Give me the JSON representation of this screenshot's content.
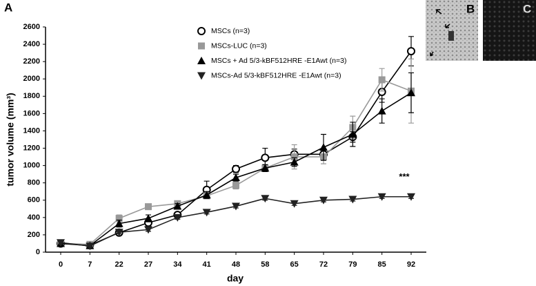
{
  "chart_data": {
    "type": "line",
    "panel_label": "A",
    "xlabel": "day",
    "ylabel": "tumor volume (mm³)",
    "categories": [
      "0",
      "7",
      "22",
      "27",
      "34",
      "41",
      "48",
      "58",
      "65",
      "72",
      "79",
      "85",
      "92"
    ],
    "ylim": [
      0,
      2600
    ],
    "yticks": [
      0,
      200,
      400,
      600,
      800,
      1000,
      1200,
      1400,
      1600,
      1800,
      2000,
      2200,
      2400,
      2600
    ],
    "series": [
      {
        "name": "MSCs (n=3)",
        "color": "#000000",
        "marker": "circle-open",
        "values": [
          100,
          80,
          225,
          340,
          430,
          720,
          960,
          1090,
          1130,
          1130,
          1330,
          1850,
          2320
        ],
        "errors": [
          30,
          20,
          30,
          40,
          30,
          100,
          40,
          110,
          60,
          60,
          60,
          120,
          170
        ]
      },
      {
        "name": "MSCs-LUC (n=3)",
        "color": "#999999",
        "marker": "square",
        "values": [
          100,
          90,
          390,
          525,
          560,
          650,
          770,
          970,
          1100,
          1100,
          1440,
          1990,
          1860
        ],
        "errors": [
          20,
          20,
          40,
          30,
          30,
          30,
          40,
          40,
          140,
          80,
          130,
          130,
          370
        ]
      },
      {
        "name": "MSCs + Ad 5/3-kBF512HRE -E1Awt (n=3)",
        "color": "#000000",
        "marker": "triangle-up",
        "values": [
          100,
          75,
          330,
          390,
          530,
          660,
          860,
          970,
          1040,
          1210,
          1360,
          1630,
          1840
        ],
        "errors": [
          20,
          20,
          40,
          40,
          30,
          40,
          40,
          40,
          50,
          150,
          140,
          140,
          230
        ]
      },
      {
        "name": "MSCs-Ad 5/3-kBF512HRE -E1Awt (n=3)",
        "color": "#222222",
        "marker": "triangle-down",
        "values": [
          110,
          70,
          230,
          260,
          400,
          460,
          530,
          620,
          560,
          600,
          610,
          640,
          640
        ],
        "errors": [
          20,
          15,
          20,
          20,
          20,
          20,
          20,
          20,
          20,
          20,
          20,
          20,
          20
        ]
      }
    ],
    "annotation": "***"
  },
  "panels": {
    "b_label": "B",
    "c_label": "C"
  }
}
